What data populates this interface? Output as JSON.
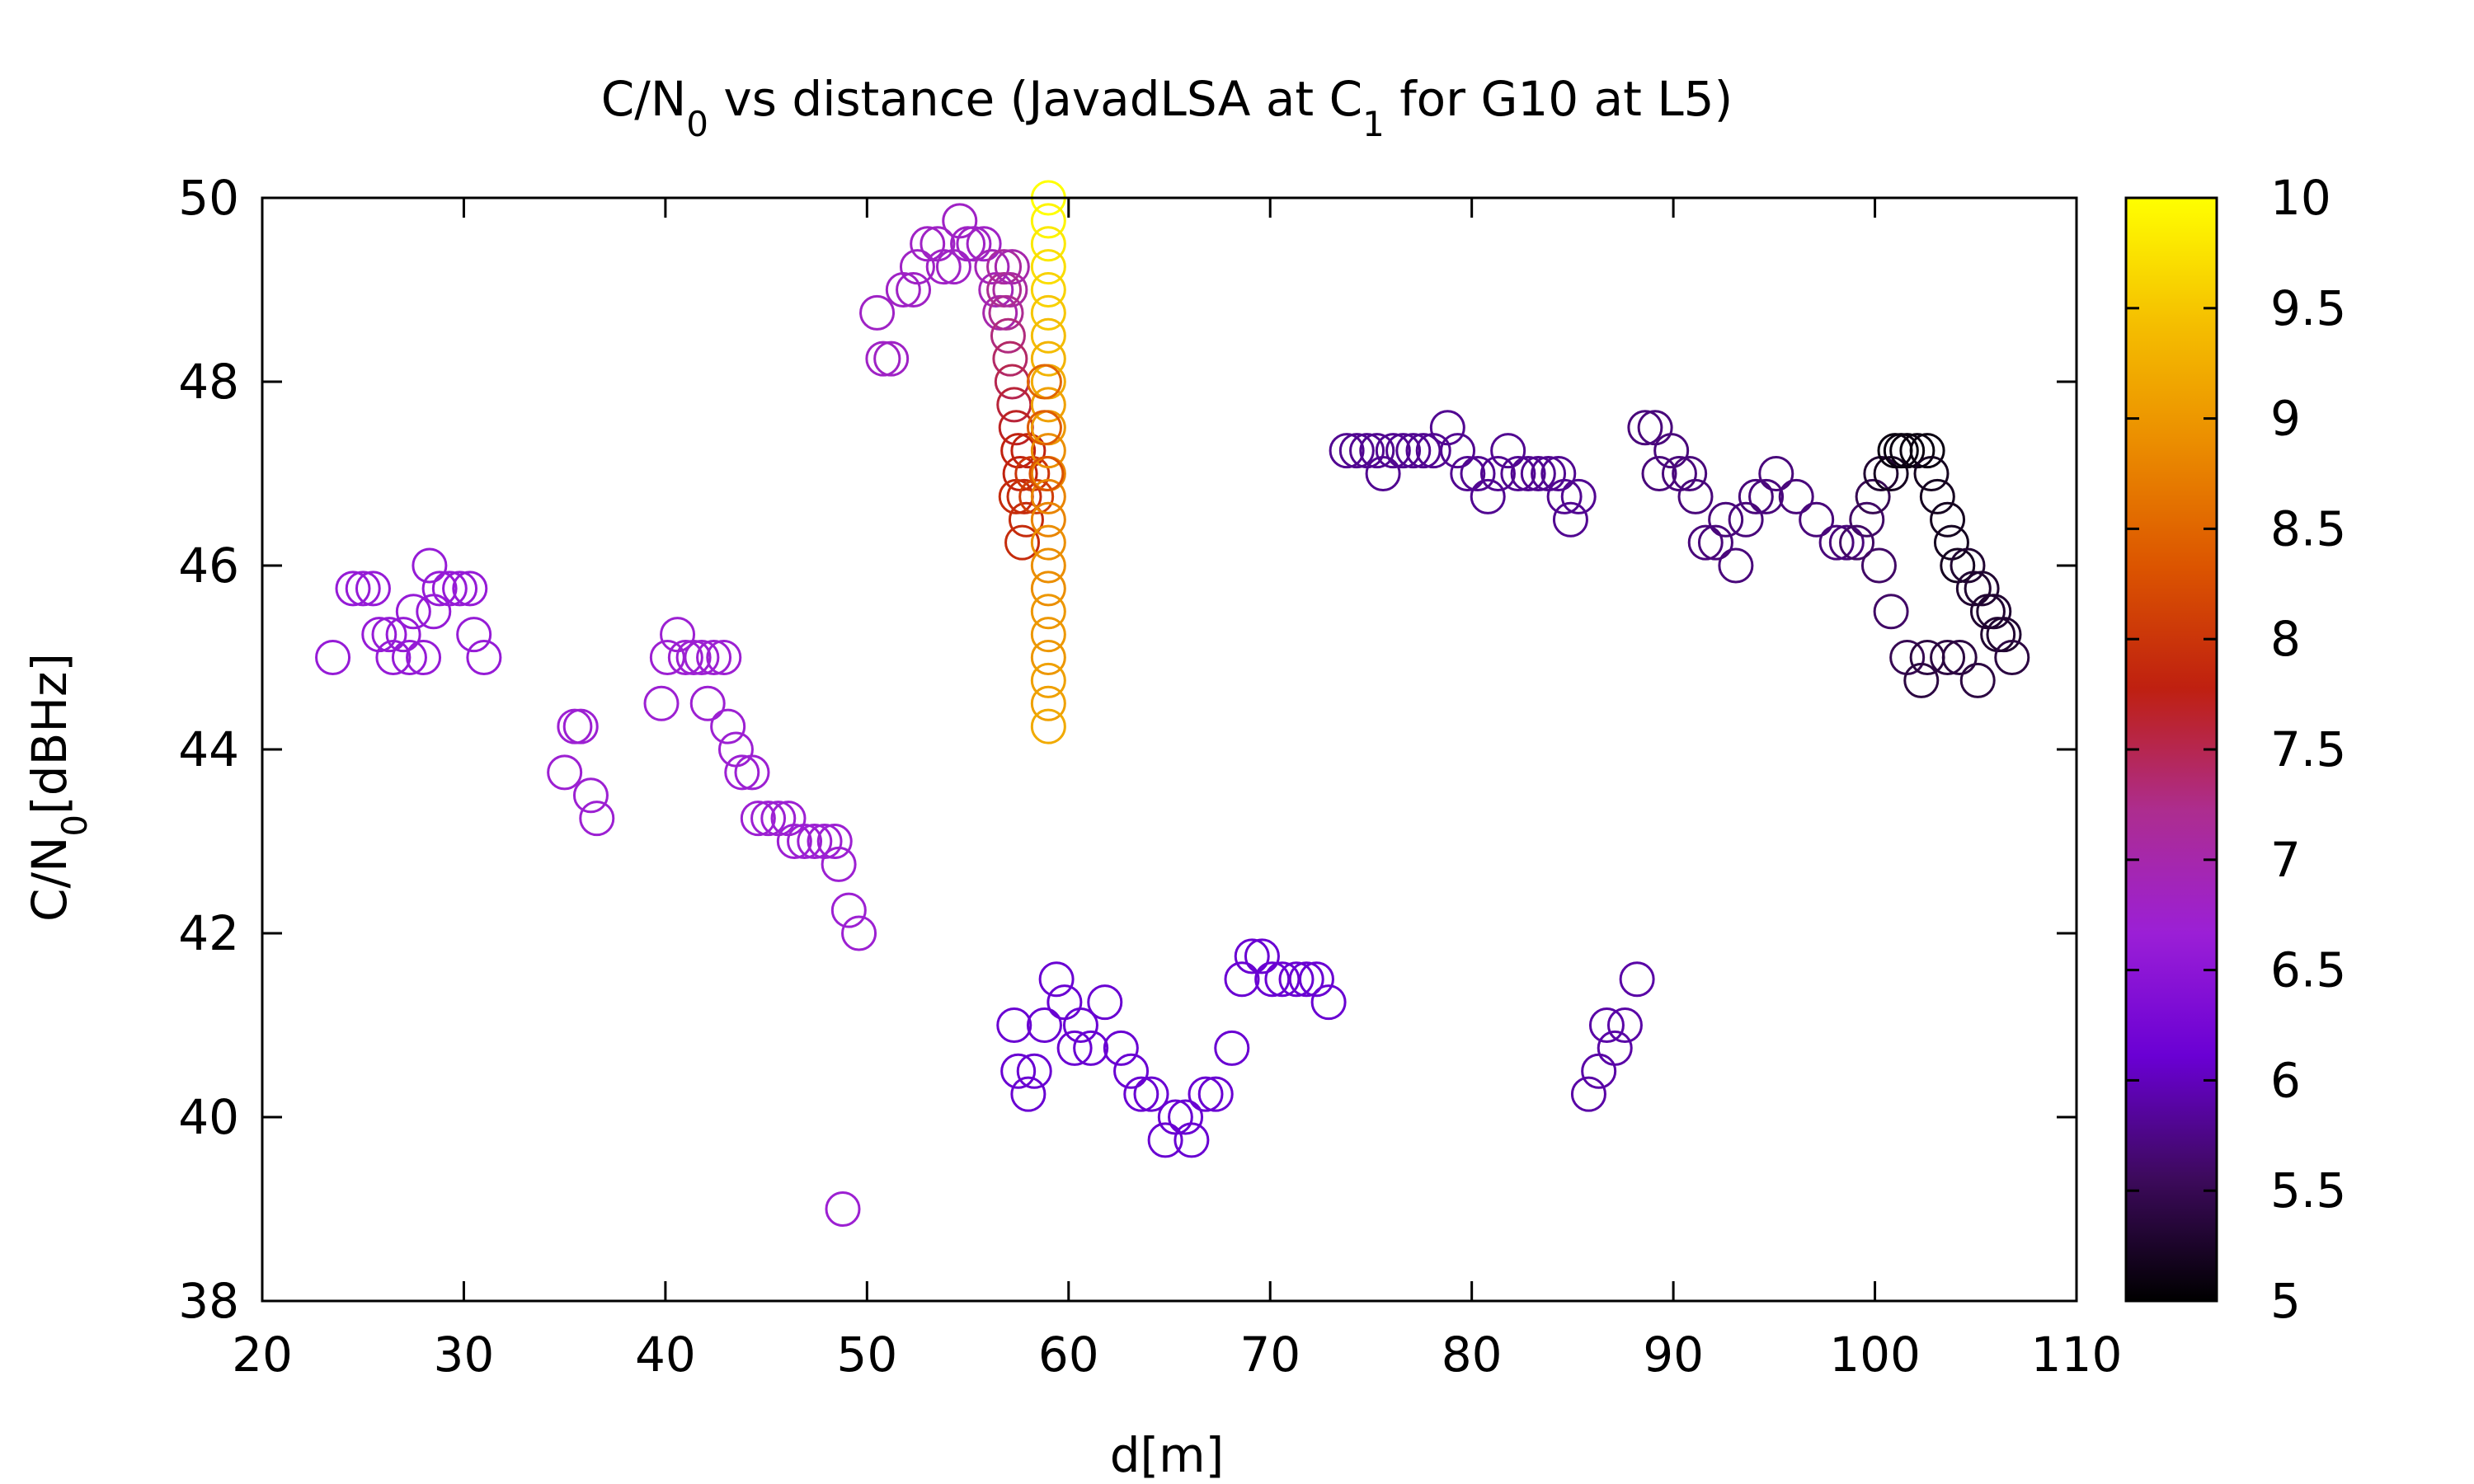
{
  "chart_data": {
    "type": "scatter",
    "title_parts": [
      {
        "t": "C/N",
        "sub": false
      },
      {
        "t": "0",
        "sub": true
      },
      {
        "t": " vs distance (JavadLSA at C",
        "sub": false
      },
      {
        "t": "1",
        "sub": true
      },
      {
        "t": " for G10 at L5)",
        "sub": false
      }
    ],
    "xlabel": "d[m]",
    "ylabel_parts": [
      {
        "t": "C/N",
        "sub": false
      },
      {
        "t": "0",
        "sub": true
      },
      {
        "t": "[dBHz]",
        "sub": false
      }
    ],
    "xlim": [
      20,
      110
    ],
    "ylim": [
      38,
      50
    ],
    "xticks": [
      20,
      30,
      40,
      50,
      60,
      70,
      80,
      90,
      100,
      110
    ],
    "yticks": [
      38,
      40,
      42,
      44,
      46,
      48,
      50
    ],
    "colorbar": {
      "range": [
        5,
        10
      ],
      "ticks": [
        "5",
        "5.5",
        "6",
        "6.5",
        "7",
        "7.5",
        "8",
        "8.5",
        "9",
        "9.5",
        "10"
      ],
      "palette": [
        "#000000",
        "#3d0a5c",
        "#6a00d4",
        "#9b1fd6",
        "#ad2d8f",
        "#bf2010",
        "#dc5500",
        "#eb8d00",
        "#f5c000",
        "#ffff00"
      ]
    },
    "marker": "open-circle",
    "points": [
      [
        23.5,
        45.0,
        6.6
      ],
      [
        24.5,
        45.75,
        6.6
      ],
      [
        25.0,
        45.75,
        6.6
      ],
      [
        25.5,
        45.75,
        6.6
      ],
      [
        25.8,
        45.25,
        6.6
      ],
      [
        26.3,
        45.25,
        6.6
      ],
      [
        26.5,
        45.0,
        6.6
      ],
      [
        27.0,
        45.25,
        6.6
      ],
      [
        27.3,
        45.0,
        6.6
      ],
      [
        27.5,
        45.5,
        6.6
      ],
      [
        28.0,
        45.0,
        6.6
      ],
      [
        28.3,
        46.0,
        6.6
      ],
      [
        28.5,
        45.5,
        6.6
      ],
      [
        28.8,
        45.75,
        6.6
      ],
      [
        29.3,
        45.75,
        6.6
      ],
      [
        29.8,
        45.75,
        6.6
      ],
      [
        30.3,
        45.75,
        6.6
      ],
      [
        30.5,
        45.25,
        6.6
      ],
      [
        31.0,
        45.0,
        6.6
      ],
      [
        35.0,
        43.75,
        6.7
      ],
      [
        35.5,
        44.25,
        6.7
      ],
      [
        35.8,
        44.25,
        6.7
      ],
      [
        36.3,
        43.5,
        6.7
      ],
      [
        36.6,
        43.25,
        6.7
      ],
      [
        39.8,
        44.5,
        6.7
      ],
      [
        40.1,
        45.0,
        6.7
      ],
      [
        40.6,
        45.25,
        6.7
      ],
      [
        41.0,
        45.0,
        6.7
      ],
      [
        41.4,
        45.0,
        6.7
      ],
      [
        41.8,
        45.0,
        6.7
      ],
      [
        42.1,
        44.5,
        6.7
      ],
      [
        42.4,
        45.0,
        6.7
      ],
      [
        42.9,
        45.0,
        6.7
      ],
      [
        43.1,
        44.25,
        6.7
      ],
      [
        43.5,
        44.0,
        6.7
      ],
      [
        43.8,
        43.75,
        6.7
      ],
      [
        44.3,
        43.75,
        6.7
      ],
      [
        44.6,
        43.25,
        6.7
      ],
      [
        45.1,
        43.25,
        6.7
      ],
      [
        45.6,
        43.25,
        6.7
      ],
      [
        46.1,
        43.25,
        6.7
      ],
      [
        46.4,
        43.0,
        6.7
      ],
      [
        46.9,
        43.0,
        6.7
      ],
      [
        47.4,
        43.0,
        6.7
      ],
      [
        47.9,
        43.0,
        6.7
      ],
      [
        48.4,
        43.0,
        6.7
      ],
      [
        48.6,
        42.75,
        6.7
      ],
      [
        49.1,
        42.25,
        6.7
      ],
      [
        49.6,
        42.0,
        6.7
      ],
      [
        48.8,
        39.0,
        6.7
      ],
      [
        50.5,
        48.75,
        6.8
      ],
      [
        50.8,
        48.25,
        6.8
      ],
      [
        51.2,
        48.25,
        6.8
      ],
      [
        51.8,
        49.0,
        6.8
      ],
      [
        52.3,
        49.0,
        6.8
      ],
      [
        52.5,
        49.25,
        6.8
      ],
      [
        53.0,
        49.5,
        6.8
      ],
      [
        53.5,
        49.5,
        6.8
      ],
      [
        53.8,
        49.25,
        6.8
      ],
      [
        54.3,
        49.25,
        6.8
      ],
      [
        54.6,
        49.75,
        6.8
      ],
      [
        55.0,
        49.5,
        6.8
      ],
      [
        55.3,
        49.5,
        6.8
      ],
      [
        55.8,
        49.5,
        6.8
      ],
      [
        56.2,
        49.25,
        6.9
      ],
      [
        56.4,
        49.0,
        6.9
      ],
      [
        56.6,
        48.75,
        7.0
      ],
      [
        56.8,
        49.25,
        7.1
      ],
      [
        56.8,
        49.0,
        7.2
      ],
      [
        56.9,
        48.75,
        7.2
      ],
      [
        57.0,
        48.5,
        7.3
      ],
      [
        57.1,
        48.25,
        7.4
      ],
      [
        57.2,
        48.0,
        7.5
      ],
      [
        57.3,
        47.75,
        7.6
      ],
      [
        57.4,
        47.5,
        7.7
      ],
      [
        57.5,
        47.25,
        7.8
      ],
      [
        57.6,
        47.0,
        7.8
      ],
      [
        57.4,
        46.75,
        7.9
      ],
      [
        57.8,
        46.75,
        7.9
      ],
      [
        57.9,
        46.5,
        7.9
      ],
      [
        57.7,
        46.25,
        7.9
      ],
      [
        58.0,
        47.25,
        7.8
      ],
      [
        58.2,
        47.0,
        8.0
      ],
      [
        58.4,
        46.75,
        8.1
      ],
      [
        57.1,
        49.0,
        7.1
      ],
      [
        57.2,
        49.25,
        7.0
      ],
      [
        59.0,
        50.0,
        10.0
      ],
      [
        59.0,
        49.75,
        9.9
      ],
      [
        59.0,
        49.5,
        9.8
      ],
      [
        59.0,
        49.25,
        9.7
      ],
      [
        59.0,
        49.0,
        9.6
      ],
      [
        59.0,
        48.75,
        9.5
      ],
      [
        59.0,
        48.5,
        9.4
      ],
      [
        59.0,
        48.25,
        9.3
      ],
      [
        59.0,
        48.0,
        9.2
      ],
      [
        59.0,
        47.75,
        9.1
      ],
      [
        59.0,
        47.5,
        9.0
      ],
      [
        59.0,
        47.25,
        8.9
      ],
      [
        59.0,
        47.0,
        8.8
      ],
      [
        59.0,
        46.75,
        8.8
      ],
      [
        59.0,
        46.5,
        8.8
      ],
      [
        59.0,
        46.25,
        8.9
      ],
      [
        59.0,
        46.0,
        8.9
      ],
      [
        59.0,
        45.75,
        8.9
      ],
      [
        59.0,
        45.5,
        9.0
      ],
      [
        59.0,
        45.25,
        9.0
      ],
      [
        59.0,
        45.0,
        9.0
      ],
      [
        59.0,
        44.75,
        9.1
      ],
      [
        59.0,
        44.5,
        9.1
      ],
      [
        59.0,
        44.25,
        9.2
      ],
      [
        58.8,
        48.0,
        8.5
      ],
      [
        58.8,
        47.5,
        8.4
      ],
      [
        58.9,
        47.0,
        8.3
      ],
      [
        57.3,
        41.0,
        6.1
      ],
      [
        57.5,
        40.5,
        6.1
      ],
      [
        58.0,
        40.25,
        6.1
      ],
      [
        58.3,
        40.5,
        6.1
      ],
      [
        58.8,
        41.0,
        6.1
      ],
      [
        59.4,
        41.5,
        6.1
      ],
      [
        59.8,
        41.25,
        6.1
      ],
      [
        60.3,
        40.75,
        6.1
      ],
      [
        60.6,
        41.0,
        6.1
      ],
      [
        61.1,
        40.75,
        6.1
      ],
      [
        61.8,
        41.25,
        6.1
      ],
      [
        62.6,
        40.75,
        6.1
      ],
      [
        63.1,
        40.5,
        6.1
      ],
      [
        63.6,
        40.25,
        6.1
      ],
      [
        64.1,
        40.25,
        6.1
      ],
      [
        64.8,
        39.75,
        6.1
      ],
      [
        65.3,
        40.0,
        6.1
      ],
      [
        65.8,
        40.0,
        6.1
      ],
      [
        66.1,
        39.75,
        6.1
      ],
      [
        66.8,
        40.25,
        6.1
      ],
      [
        67.3,
        40.25,
        6.1
      ],
      [
        68.1,
        40.75,
        6.1
      ],
      [
        68.6,
        41.5,
        6.1
      ],
      [
        69.1,
        41.75,
        6.1
      ],
      [
        69.6,
        41.75,
        6.1
      ],
      [
        70.1,
        41.5,
        6.1
      ],
      [
        70.6,
        41.5,
        6.1
      ],
      [
        71.3,
        41.5,
        6.1
      ],
      [
        71.8,
        41.5,
        6.1
      ],
      [
        72.3,
        41.5,
        6.1
      ],
      [
        72.9,
        41.25,
        6.1
      ],
      [
        85.8,
        40.25,
        5.9
      ],
      [
        86.3,
        40.5,
        5.9
      ],
      [
        86.7,
        41.0,
        5.9
      ],
      [
        87.1,
        40.75,
        5.9
      ],
      [
        87.6,
        41.0,
        5.9
      ],
      [
        88.2,
        41.5,
        5.9
      ],
      [
        73.8,
        47.25,
        5.8
      ],
      [
        74.3,
        47.25,
        5.8
      ],
      [
        74.8,
        47.25,
        5.8
      ],
      [
        75.3,
        47.25,
        5.8
      ],
      [
        75.6,
        47.0,
        5.8
      ],
      [
        76.1,
        47.25,
        5.8
      ],
      [
        76.6,
        47.25,
        5.8
      ],
      [
        77.1,
        47.25,
        5.8
      ],
      [
        77.6,
        47.25,
        5.8
      ],
      [
        78.1,
        47.25,
        5.8
      ],
      [
        78.8,
        47.5,
        5.8
      ],
      [
        79.3,
        47.25,
        5.8
      ],
      [
        79.8,
        47.0,
        5.8
      ],
      [
        80.3,
        47.0,
        5.8
      ],
      [
        80.8,
        46.75,
        5.8
      ],
      [
        81.3,
        47.0,
        5.8
      ],
      [
        81.8,
        47.25,
        5.8
      ],
      [
        82.3,
        47.0,
        5.8
      ],
      [
        82.8,
        47.0,
        5.8
      ],
      [
        83.3,
        47.0,
        5.8
      ],
      [
        83.8,
        47.0,
        5.8
      ],
      [
        84.3,
        47.0,
        5.8
      ],
      [
        84.6,
        46.75,
        5.8
      ],
      [
        84.9,
        46.5,
        5.8
      ],
      [
        85.3,
        46.75,
        5.8
      ],
      [
        88.6,
        47.5,
        5.7
      ],
      [
        89.1,
        47.5,
        5.7
      ],
      [
        89.3,
        47.0,
        5.7
      ],
      [
        89.9,
        47.25,
        5.7
      ],
      [
        90.3,
        47.0,
        5.7
      ],
      [
        90.8,
        47.0,
        5.7
      ],
      [
        91.1,
        46.75,
        5.7
      ],
      [
        91.6,
        46.25,
        5.7
      ],
      [
        92.1,
        46.25,
        5.7
      ],
      [
        92.6,
        46.5,
        5.7
      ],
      [
        93.1,
        46.0,
        5.7
      ],
      [
        93.6,
        46.5,
        5.7
      ],
      [
        94.1,
        46.75,
        5.7
      ],
      [
        94.6,
        46.75,
        5.7
      ],
      [
        95.1,
        47.0,
        5.7
      ],
      [
        96.1,
        46.75,
        5.7
      ],
      [
        97.1,
        46.5,
        5.7
      ],
      [
        98.1,
        46.25,
        5.7
      ],
      [
        98.6,
        46.25,
        5.7
      ],
      [
        99.1,
        46.25,
        5.6
      ],
      [
        99.6,
        46.5,
        5.6
      ],
      [
        99.9,
        46.75,
        5.5
      ],
      [
        100.2,
        46.0,
        5.6
      ],
      [
        100.8,
        45.5,
        5.6
      ],
      [
        101.6,
        45.0,
        5.5
      ],
      [
        100.3,
        47.0,
        5.3
      ],
      [
        100.8,
        47.0,
        5.2
      ],
      [
        101.0,
        47.25,
        5.1
      ],
      [
        101.3,
        47.25,
        5.1
      ],
      [
        101.6,
        47.25,
        5.1
      ],
      [
        102.1,
        47.25,
        5.1
      ],
      [
        102.6,
        47.25,
        5.1
      ],
      [
        102.8,
        47.0,
        5.2
      ],
      [
        103.1,
        46.75,
        5.2
      ],
      [
        103.6,
        46.5,
        5.2
      ],
      [
        103.8,
        46.25,
        5.2
      ],
      [
        104.1,
        46.0,
        5.2
      ],
      [
        104.6,
        46.0,
        5.3
      ],
      [
        104.9,
        45.75,
        5.3
      ],
      [
        105.3,
        45.75,
        5.3
      ],
      [
        105.6,
        45.5,
        5.3
      ],
      [
        105.9,
        45.5,
        5.3
      ],
      [
        106.1,
        45.25,
        5.3
      ],
      [
        106.4,
        45.25,
        5.3
      ],
      [
        106.8,
        45.0,
        5.4
      ],
      [
        104.2,
        45.0,
        5.4
      ],
      [
        103.6,
        45.0,
        5.4
      ],
      [
        102.6,
        45.0,
        5.4
      ],
      [
        102.3,
        44.75,
        5.4
      ],
      [
        105.1,
        44.75,
        5.4
      ]
    ]
  }
}
